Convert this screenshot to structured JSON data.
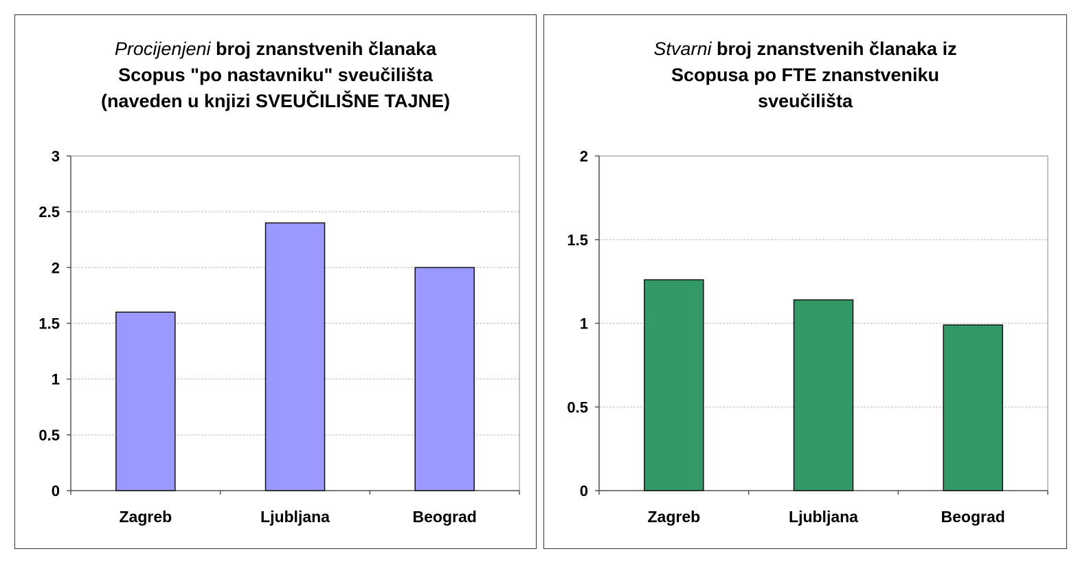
{
  "colors": {
    "bar_left": "#9999ff",
    "bar_right": "#339966",
    "grid": "#bbbbbb",
    "axis": "#555555"
  },
  "charts": [
    {
      "title_em": "Procijenjeni",
      "title_rest": " broj znanstvenih članaka",
      "title_line2": "Scopus \"po nastavniku\" sveučilišta",
      "title_line3": "(naveden u knjizi SVEUČILIŠNE TAJNE)"
    },
    {
      "title_em": "Stvarni",
      "title_rest": " broj znanstvenih članaka iz",
      "title_line2": "Scopusa  po FTE znanstveniku",
      "title_line3": "sveučilišta"
    }
  ],
  "chart_data": [
    {
      "type": "bar",
      "title": "Procijenjeni broj znanstvenih članaka Scopus \"po nastavniku\" sveučilišta (naveden u knjizi SVEUČILIŠNE TAJNE)",
      "categories": [
        "Zagreb",
        "Ljubljana",
        "Beograd"
      ],
      "values": [
        1.6,
        2.4,
        2.0
      ],
      "ylim": [
        0,
        3
      ],
      "yticks": [
        0,
        0.5,
        1,
        1.5,
        2,
        2.5,
        3
      ],
      "ytick_labels": [
        "0",
        "0.5",
        "1",
        "1.5",
        "2",
        "2.5",
        "3"
      ],
      "grid": true,
      "xlabel": "",
      "ylabel": ""
    },
    {
      "type": "bar",
      "title": "Stvarni broj znanstvenih članaka iz Scopusa po FTE znanstveniku sveučilišta",
      "categories": [
        "Zagreb",
        "Ljubljana",
        "Beograd"
      ],
      "values": [
        1.26,
        1.14,
        0.99
      ],
      "ylim": [
        0,
        2
      ],
      "yticks": [
        0,
        0.5,
        1,
        1.5,
        2
      ],
      "ytick_labels": [
        "0",
        "0.5",
        "1",
        "1.5",
        "2"
      ],
      "grid": true,
      "xlabel": "",
      "ylabel": ""
    }
  ]
}
